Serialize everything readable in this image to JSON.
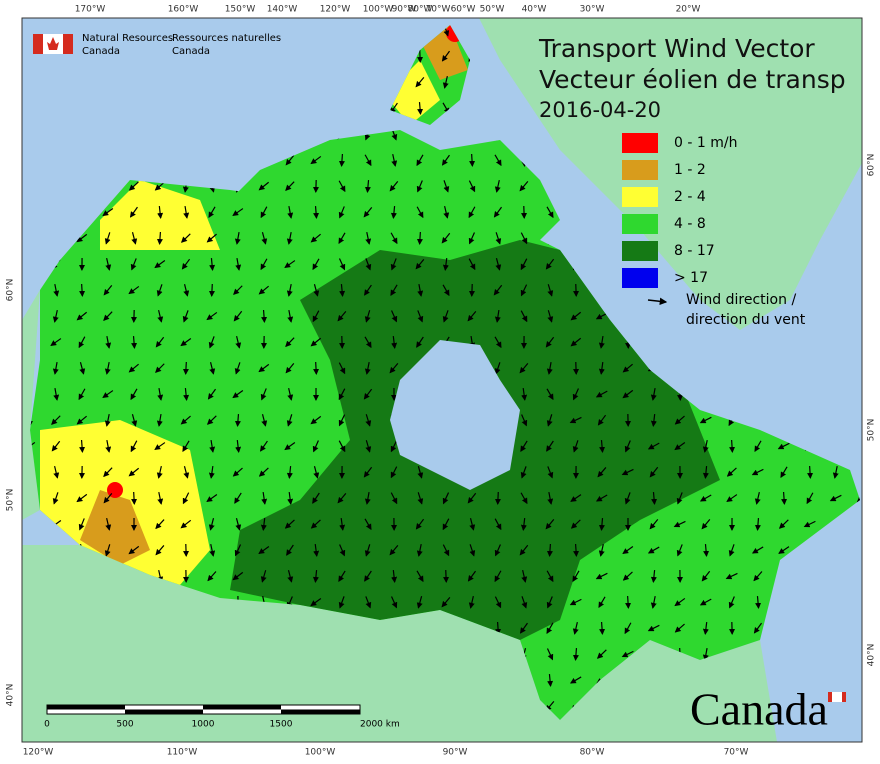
{
  "header": {
    "agency_en": [
      "Natural Resources",
      "Canada"
    ],
    "agency_fr": [
      "Ressources naturelles",
      "Canada"
    ]
  },
  "title": {
    "line1": "Transport Wind Vector",
    "line2": "Vecteur éolien de transp",
    "date": "2016-04-20"
  },
  "legend": {
    "items": [
      {
        "label": "0 - 1 m/h",
        "color": "#ff0000"
      },
      {
        "label": "1 - 2",
        "color": "#d89c1c"
      },
      {
        "label": "2 - 4",
        "color": "#ffff33"
      },
      {
        "label": "4 - 8",
        "color": "#2fd82f"
      },
      {
        "label": "8 - 17",
        "color": "#157a15"
      },
      {
        "label": "> 17",
        "color": "#0000ee"
      }
    ],
    "arrow_label": [
      "Wind direction /",
      "direction du vent"
    ]
  },
  "graticule": {
    "top": [
      "170°W",
      "160°W",
      "150°W",
      "140°W",
      "120°W",
      "100°W",
      "90°W",
      "80°W",
      "70°W",
      "60°W",
      "50°W",
      "40°W",
      "30°W",
      "20°W"
    ],
    "bottom": [
      "120°W",
      "110°W",
      "100°W",
      "90°W",
      "80°W",
      "70°W"
    ],
    "left": [
      "60°N",
      "50°N",
      "40°N"
    ],
    "right": [
      "60°N",
      "50°N",
      "40°N"
    ]
  },
  "scale_bar": {
    "ticks": [
      "0",
      "500",
      "1000",
      "1500",
      "2000 km"
    ]
  },
  "wordmark": "Canada"
}
